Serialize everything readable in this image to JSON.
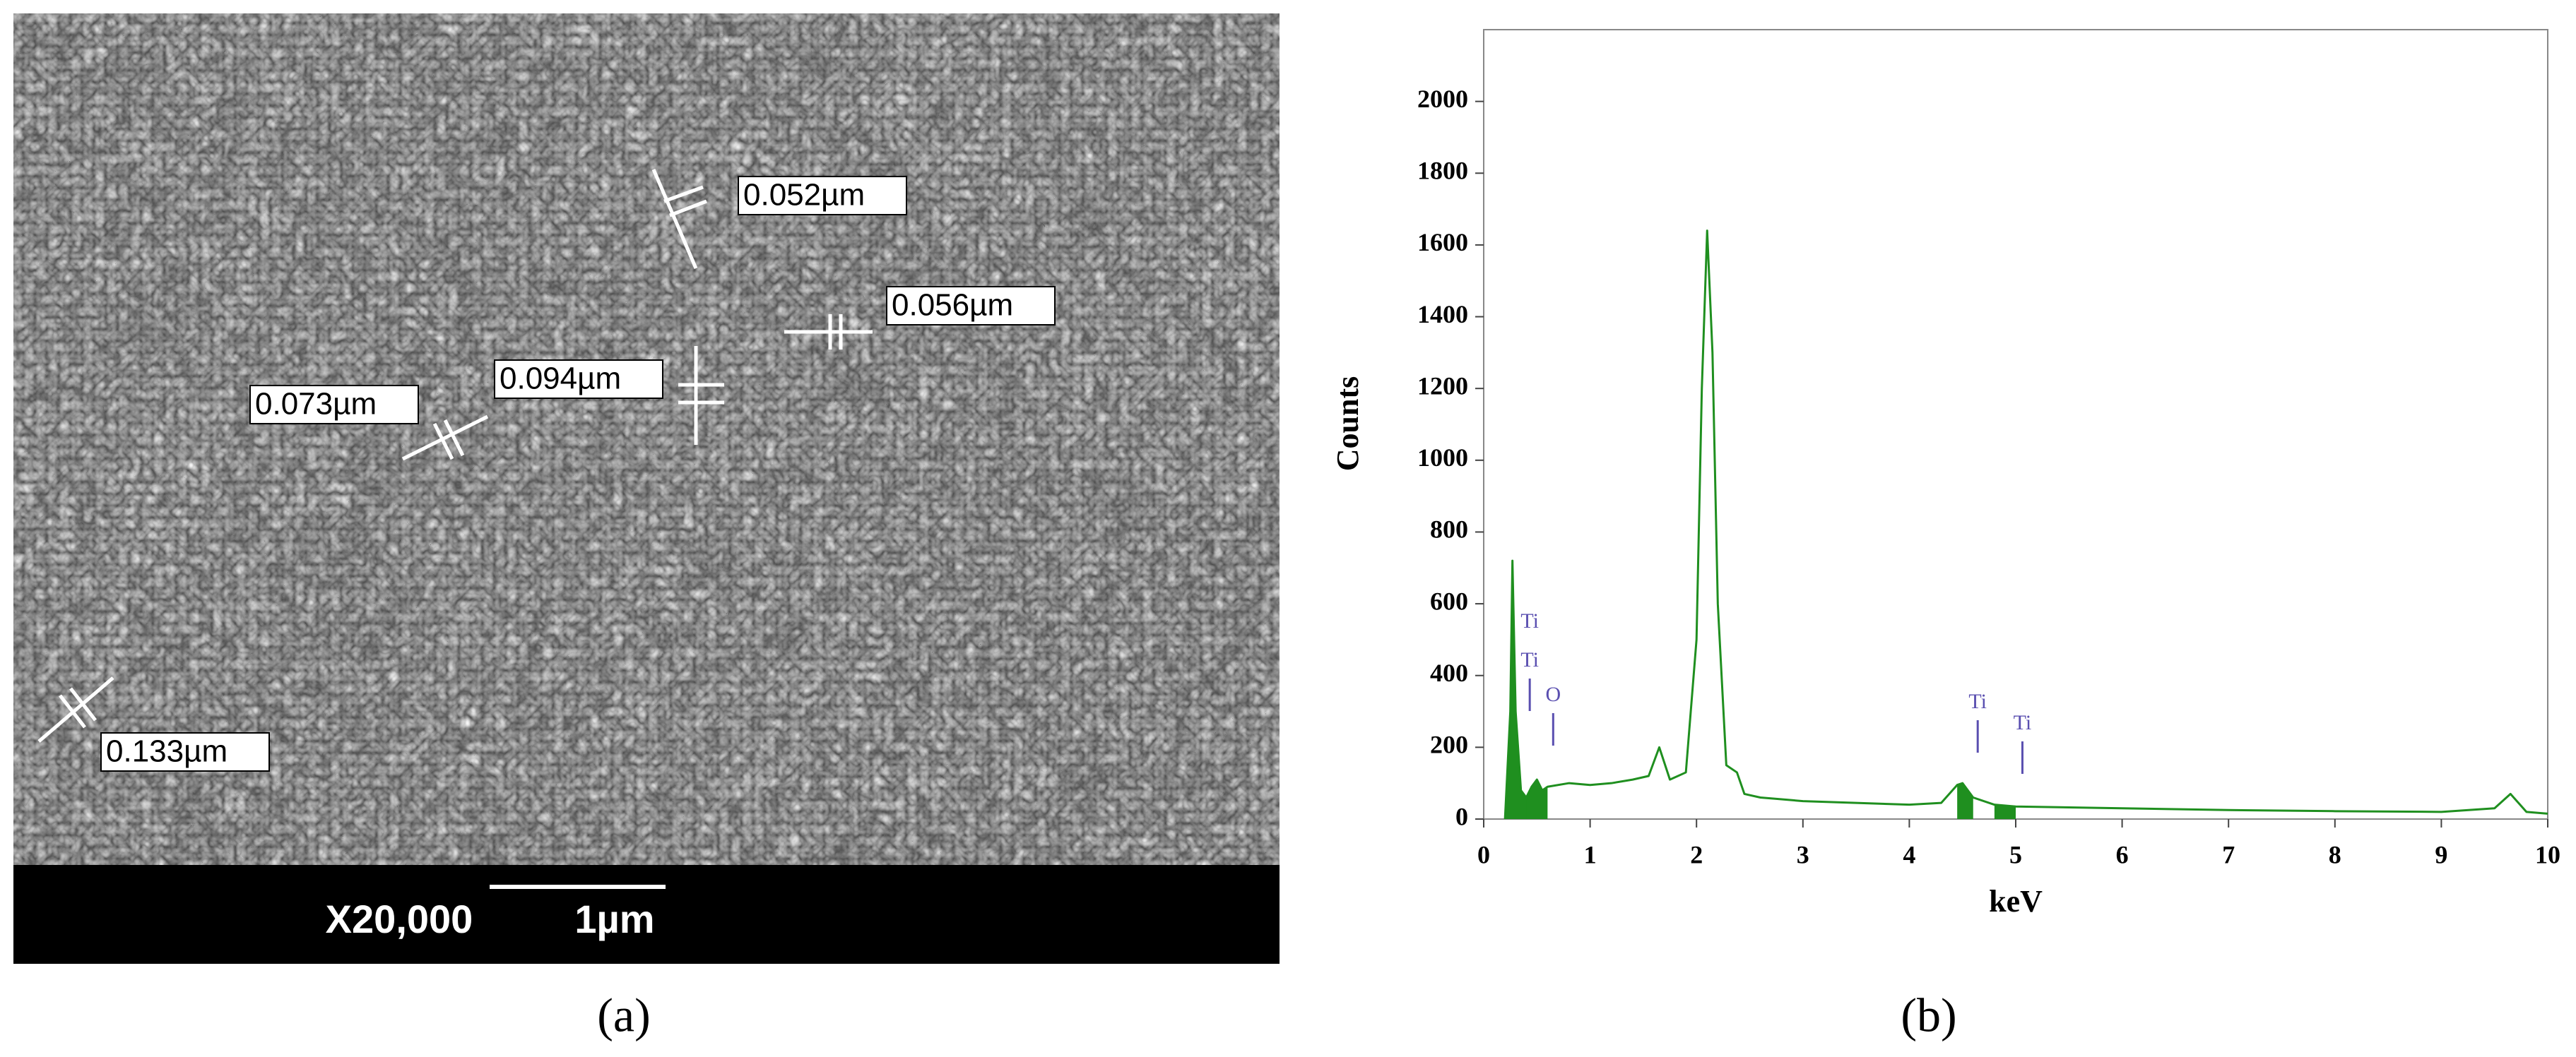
{
  "sem_image": {
    "labels": [
      "0.052µm",
      "0.056µm",
      "0.094µm",
      "0.073µm",
      "0.133µm"
    ],
    "magnification": "X20,000",
    "scale_bar": "1µm"
  },
  "captions": [
    "(a)",
    "(b)"
  ],
  "chart_data": {
    "type": "line",
    "x_label": "keV",
    "y_label": "Counts",
    "color": "#1f8f1f",
    "x": [
      0.2,
      0.25,
      0.27,
      0.3,
      0.35,
      0.4,
      0.45,
      0.5,
      0.55,
      0.6,
      0.8,
      1.0,
      1.2,
      1.4,
      1.55,
      1.65,
      1.75,
      1.9,
      2.0,
      2.05,
      2.1,
      2.15,
      2.2,
      2.28,
      2.38,
      2.45,
      2.6,
      2.8,
      3.0,
      3.5,
      4.0,
      4.3,
      4.45,
      4.5,
      4.6,
      4.8,
      5.0,
      6.0,
      7.0,
      8.0,
      9.0,
      9.5,
      9.65,
      9.8,
      10.0
    ],
    "values": [
      0,
      300,
      720,
      300,
      80,
      60,
      90,
      110,
      80,
      90,
      100,
      95,
      100,
      110,
      120,
      200,
      110,
      130,
      500,
      1200,
      1640,
      1300,
      600,
      150,
      130,
      70,
      60,
      55,
      50,
      45,
      40,
      45,
      95,
      100,
      60,
      40,
      35,
      30,
      25,
      22,
      20,
      30,
      70,
      20,
      15
    ],
    "xlim": [
      0,
      10
    ],
    "ylim": [
      0,
      2200
    ],
    "xticks": [
      0,
      1,
      2,
      3,
      4,
      5,
      6,
      7,
      8,
      9,
      10
    ],
    "yticks": [
      0,
      200,
      400,
      600,
      800,
      1000,
      1200,
      1400,
      1600,
      1800,
      2000
    ],
    "annotations": [
      {
        "text": "Ti",
        "x": 0.3
      },
      {
        "text": "Ti",
        "x": 0.3
      },
      {
        "text": "O",
        "x": 0.52
      },
      {
        "text": "Ti",
        "x": 4.51
      },
      {
        "text": "Ti",
        "x": 4.93
      }
    ]
  }
}
